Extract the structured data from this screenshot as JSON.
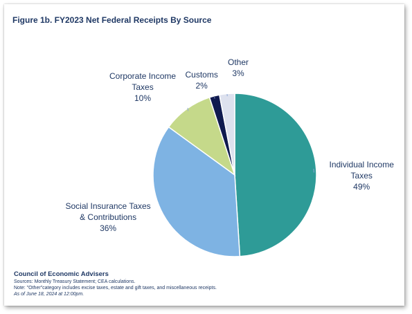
{
  "title": "Figure 1b. FY2023 Net Federal Receipts By Source",
  "chart_data": {
    "type": "pie",
    "title": "Figure 1b. FY2023 Net Federal Receipts By Source",
    "slices": [
      {
        "name": "Individual Income Taxes",
        "label_lines": [
          "Individual Income",
          "Taxes"
        ],
        "pct_label": "49%",
        "value": 49,
        "color": "#2e9b97"
      },
      {
        "name": "Social Insurance Taxes & Contributions",
        "label_lines": [
          "Social Insurance Taxes",
          "& Contributions"
        ],
        "pct_label": "36%",
        "value": 36,
        "color": "#7eb3e3"
      },
      {
        "name": "Corporate Income Taxes",
        "label_lines": [
          "Corporate Income",
          "Taxes"
        ],
        "pct_label": "10%",
        "value": 10,
        "color": "#c5d98a"
      },
      {
        "name": "Customs",
        "label_lines": [
          "Customs"
        ],
        "pct_label": "2%",
        "value": 2,
        "color": "#0f1a4f"
      },
      {
        "name": "Other",
        "label_lines": [
          "Other"
        ],
        "pct_label": "3%",
        "value": 3,
        "color": "#dde1ee"
      }
    ]
  },
  "footer": {
    "org": "Council of Economic Advisers",
    "sources": "Sources: Monthly Treasury Statement; CEA calculations.",
    "note": "Note: \"Other\"category includes excise taxes, estate and gift taxes, and miscellaneous receipts.",
    "as_of": "As of June 18, 2024 at 12:00pm."
  }
}
